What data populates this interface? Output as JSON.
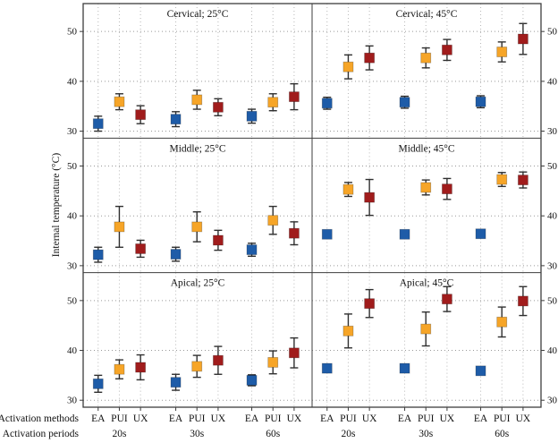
{
  "chart_data": {
    "type": "scatter",
    "ylabel": "Internal temperature (°C)",
    "x_caption_methods": "Activation methods",
    "x_caption_periods": "Activation periods",
    "methods": [
      "EA",
      "PUI",
      "UX"
    ],
    "periods": [
      "20s",
      "30s",
      "60s"
    ],
    "yticks": [
      30,
      40,
      50
    ],
    "ylim": [
      28.6,
      55.6
    ],
    "grid": "dotted",
    "marker_colors": {
      "EA": "#1e5ca8",
      "PUI": "#f6a528",
      "UX": "#a01c1c"
    },
    "errorbar_color": "#2f2f2f",
    "panel_rows": [
      "Cervical",
      "Middle",
      "Apical"
    ],
    "panel_cols": [
      "25°C",
      "45°C"
    ],
    "panels": [
      {
        "title": "Cervical; 25°C",
        "region": "Cervical",
        "irrigant_temp": "25°C",
        "series": [
          {
            "name": "EA",
            "y": [
              31.5,
              32.4,
              33.0
            ],
            "err": [
              1.5,
              1.5,
              1.4
            ]
          },
          {
            "name": "PUI",
            "y": [
              35.9,
              36.3,
              35.8
            ],
            "err": [
              1.6,
              1.9,
              1.7
            ]
          },
          {
            "name": "UX",
            "y": [
              33.3,
              34.8,
              36.9
            ],
            "err": [
              1.8,
              1.7,
              2.6
            ]
          }
        ]
      },
      {
        "title": "Cervical; 45°C",
        "region": "Cervical",
        "irrigant_temp": "45°C",
        "series": [
          {
            "name": "EA",
            "y": [
              35.6,
              35.8,
              35.9
            ],
            "err": [
              1.2,
              1.2,
              1.2
            ]
          },
          {
            "name": "PUI",
            "y": [
              42.9,
              44.7,
              45.9
            ],
            "err": [
              2.4,
              2.0,
              2.0
            ]
          },
          {
            "name": "UX",
            "y": [
              44.7,
              46.3,
              48.5
            ],
            "err": [
              2.4,
              2.1,
              3.1
            ]
          }
        ]
      },
      {
        "title": "Middle; 25°C",
        "region": "Middle",
        "irrigant_temp": "25°C",
        "series": [
          {
            "name": "EA",
            "y": [
              32.2,
              32.3,
              33.2
            ],
            "err": [
              1.5,
              1.4,
              1.3
            ]
          },
          {
            "name": "PUI",
            "y": [
              37.8,
              37.8,
              39.1
            ],
            "err": [
              4.1,
              3.0,
              2.8
            ]
          },
          {
            "name": "UX",
            "y": [
              33.4,
              35.1,
              36.5
            ],
            "err": [
              1.7,
              2.0,
              2.3
            ]
          }
        ]
      },
      {
        "title": "Middle; 45°C",
        "region": "Middle",
        "irrigant_temp": "45°C",
        "series": [
          {
            "name": "EA",
            "y": [
              36.3,
              36.3,
              36.4
            ],
            "err": [
              0.7,
              0.6,
              0.6
            ]
          },
          {
            "name": "PUI",
            "y": [
              45.3,
              45.7,
              47.3
            ],
            "err": [
              1.4,
              1.5,
              1.4
            ]
          },
          {
            "name": "UX",
            "y": [
              43.7,
              45.4,
              47.2
            ],
            "err": [
              3.6,
              2.1,
              1.6
            ]
          }
        ]
      },
      {
        "title": "Apical; 25°C",
        "region": "Apical",
        "irrigant_temp": "25°C",
        "series": [
          {
            "name": "EA",
            "y": [
              33.3,
              33.6,
              34.0
            ],
            "err": [
              1.7,
              1.6,
              1.1
            ]
          },
          {
            "name": "PUI",
            "y": [
              36.2,
              36.8,
              37.6
            ],
            "err": [
              1.9,
              2.2,
              2.3
            ]
          },
          {
            "name": "UX",
            "y": [
              36.6,
              38.0,
              39.5
            ],
            "err": [
              2.5,
              2.8,
              3.0
            ]
          }
        ]
      },
      {
        "title": "Apical; 45°C",
        "region": "Apical",
        "irrigant_temp": "45°C",
        "series": [
          {
            "name": "EA",
            "y": [
              36.4,
              36.4,
              35.9
            ],
            "err": [
              0.8,
              0.8,
              0.8
            ]
          },
          {
            "name": "PUI",
            "y": [
              43.9,
              44.3,
              45.7
            ],
            "err": [
              3.4,
              3.4,
              3.0
            ]
          },
          {
            "name": "UX",
            "y": [
              49.4,
              50.3,
              49.9
            ],
            "err": [
              2.8,
              2.5,
              2.9
            ]
          }
        ]
      }
    ]
  }
}
